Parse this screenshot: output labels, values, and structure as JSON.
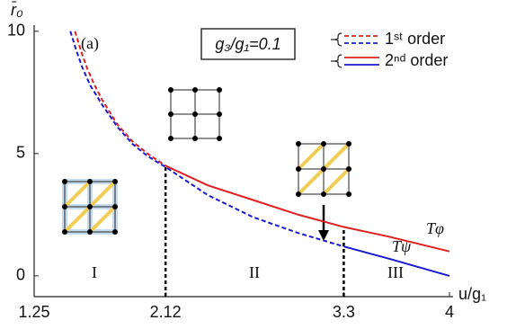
{
  "chart_data": {
    "type": "line",
    "title": "g₃/g₁=0.1",
    "panel_label": "(a)",
    "x_label": "u/g₁",
    "y_label": "r̄₀",
    "xlim": [
      1.25,
      4
    ],
    "ylim": [
      -0.85,
      10.25
    ],
    "xticks": [
      1.25,
      2.12,
      3.3,
      4
    ],
    "yticks": [
      0,
      5,
      10
    ],
    "legend": [
      {
        "label": "1ˢᵗ order",
        "dashed": true
      },
      {
        "label": "2ⁿᵈ order",
        "dashed": false
      }
    ],
    "series": [
      {
        "color": "#e02020",
        "dashed": true,
        "x": [
          1.52,
          1.56,
          1.6,
          1.65,
          1.7,
          1.8,
          1.9,
          2.0,
          2.12
        ],
        "values": [
          10,
          9.2,
          8.5,
          7.8,
          7.2,
          6.2,
          5.5,
          5.0,
          4.5
        ]
      },
      {
        "color": "#1a1ad0",
        "dashed": true,
        "x": [
          1.49,
          1.53,
          1.57,
          1.62,
          1.7,
          1.8,
          1.9,
          2.0,
          2.12,
          2.4,
          2.7,
          3.0,
          3.3
        ],
        "values": [
          10,
          9.2,
          8.5,
          7.8,
          7.0,
          6.1,
          5.4,
          4.9,
          4.45,
          3.3,
          2.4,
          1.75,
          1.2
        ]
      },
      {
        "color": "#e02020",
        "dashed": false,
        "x": [
          2.12,
          2.4,
          2.7,
          3.0,
          3.3,
          3.6,
          4.0
        ],
        "values": [
          4.5,
          3.7,
          3.1,
          2.5,
          2.0,
          1.6,
          1.0
        ]
      },
      {
        "color": "#1a1ad0",
        "dashed": false,
        "x": [
          3.3,
          3.6,
          4.0
        ],
        "values": [
          1.2,
          0.7,
          0.0
        ]
      }
    ],
    "transitions": [
      {
        "x": 2.12,
        "y": 4.5
      },
      {
        "x": 3.3,
        "y": 2.0
      }
    ],
    "curve_labels": [
      {
        "text": "Tφ",
        "color": "#e02020"
      },
      {
        "text": "Tψ",
        "color": "#1a1ad0"
      }
    ],
    "regions": [
      "I",
      "II",
      "III"
    ]
  }
}
